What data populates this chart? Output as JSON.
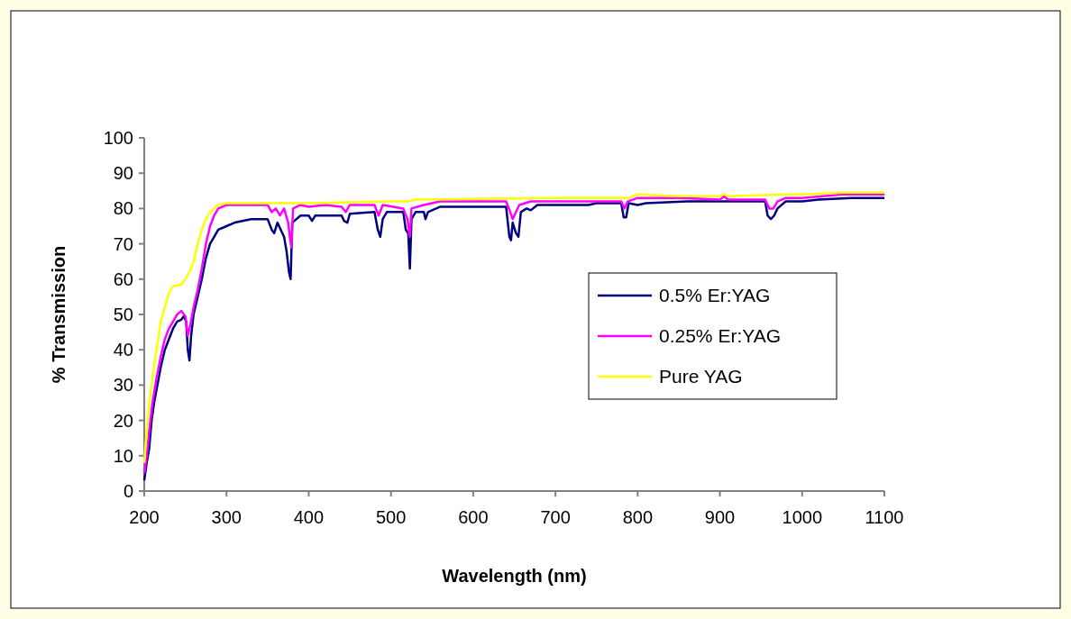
{
  "chart_data": {
    "type": "line",
    "xlabel": "Wavelength (nm)",
    "ylabel": "% Transmission",
    "xlim": [
      200,
      1100
    ],
    "xticks": [
      200,
      300,
      400,
      500,
      600,
      700,
      800,
      900,
      1000,
      1100
    ],
    "ylim": [
      0,
      100
    ],
    "yticks": [
      0,
      10,
      20,
      30,
      40,
      50,
      60,
      70,
      80,
      90,
      100
    ],
    "grid": false,
    "legend": "right",
    "marker": "none",
    "line_style": "solid",
    "series": [
      {
        "name": "0.5% Er:YAG",
        "color": "#000080",
        "x": [
          200,
          203,
          206,
          209,
          212,
          216,
          220,
          225,
          230,
          235,
          240,
          245,
          248,
          251,
          253,
          255,
          257,
          260,
          265,
          270,
          275,
          280,
          285,
          290,
          300,
          310,
          330,
          350,
          355,
          358,
          362,
          366,
          370,
          373,
          376,
          378,
          380,
          390,
          400,
          404,
          408,
          420,
          440,
          443,
          447,
          450,
          480,
          484,
          487,
          490,
          495,
          515,
          518,
          521,
          523,
          525,
          530,
          540,
          542,
          545,
          560,
          640,
          644,
          646,
          648,
          652,
          655,
          658,
          665,
          670,
          678,
          700,
          740,
          750,
          780,
          783,
          786,
          789,
          800,
          810,
          860,
          955,
          958,
          962,
          966,
          970,
          980,
          1000,
          1020,
          1060,
          1100
        ],
        "values": [
          3,
          8,
          12,
          20,
          25,
          30,
          35,
          40,
          43,
          46,
          48,
          48.5,
          49.5,
          48,
          40,
          37,
          44,
          50,
          55,
          60,
          66,
          70,
          72,
          74,
          75,
          76,
          77,
          77,
          74,
          73,
          76,
          74,
          72,
          68,
          62,
          60,
          76,
          78,
          78,
          76.5,
          78,
          78,
          78,
          76.5,
          76,
          78.5,
          79,
          74,
          72,
          77,
          79,
          79,
          74,
          73,
          63,
          77,
          79,
          79,
          77,
          79,
          80.5,
          80.5,
          72,
          71,
          76,
          73,
          72,
          79,
          80,
          79.5,
          81,
          81,
          81,
          81.5,
          81.5,
          77.5,
          77.5,
          81.5,
          81,
          81.5,
          82,
          82,
          78,
          77,
          78,
          80,
          82,
          82,
          82.5,
          83,
          83
        ]
      },
      {
        "name": "0.25% Er:YAG",
        "color": "#ff00ff",
        "x": [
          200,
          203,
          206,
          210,
          215,
          220,
          225,
          230,
          235,
          240,
          245,
          250,
          253,
          256,
          260,
          265,
          270,
          275,
          280,
          285,
          290,
          300,
          330,
          350,
          355,
          360,
          365,
          370,
          375,
          377,
          379,
          381,
          390,
          400,
          420,
          440,
          445,
          450,
          480,
          485,
          490,
          515,
          520,
          523,
          525,
          540,
          560,
          640,
          645,
          648,
          652,
          656,
          670,
          700,
          780,
          784,
          788,
          800,
          850,
          900,
          905,
          910,
          955,
          960,
          965,
          970,
          980,
          1000,
          1050,
          1100
        ],
        "values": [
          5,
          10,
          17,
          25,
          32,
          38,
          43,
          46,
          48,
          50,
          51,
          49.5,
          44,
          47,
          52,
          57,
          63,
          70,
          75,
          78,
          80,
          81,
          81,
          81,
          79,
          80,
          78,
          80,
          76,
          72,
          69,
          80,
          81,
          80.5,
          81,
          80.5,
          79,
          81,
          81,
          78,
          81,
          80,
          77,
          72,
          80,
          81,
          82,
          82,
          79,
          77,
          79,
          81,
          82,
          82,
          82,
          80,
          82,
          83,
          83,
          82.5,
          83.5,
          82.5,
          82.5,
          80,
          80,
          82,
          83,
          83,
          84,
          84
        ]
      },
      {
        "name": "Pure YAG",
        "color": "#ffff00",
        "x": [
          200,
          203,
          206,
          210,
          215,
          220,
          225,
          230,
          235,
          245,
          250,
          255,
          260,
          265,
          270,
          275,
          280,
          290,
          300,
          330,
          400,
          500,
          520,
          530,
          700,
          790,
          800,
          850,
          900,
          905,
          910,
          980,
          1000,
          1050,
          1100
        ],
        "values": [
          8,
          17,
          25,
          32,
          40,
          48,
          52,
          56,
          58,
          58.5,
          60,
          62,
          65,
          70,
          74,
          77,
          79,
          81,
          81.5,
          81.5,
          81.5,
          82,
          82,
          82.5,
          83,
          83,
          84,
          83.5,
          83.5,
          84,
          83.5,
          84,
          84,
          84.5,
          84.5
        ]
      }
    ]
  }
}
